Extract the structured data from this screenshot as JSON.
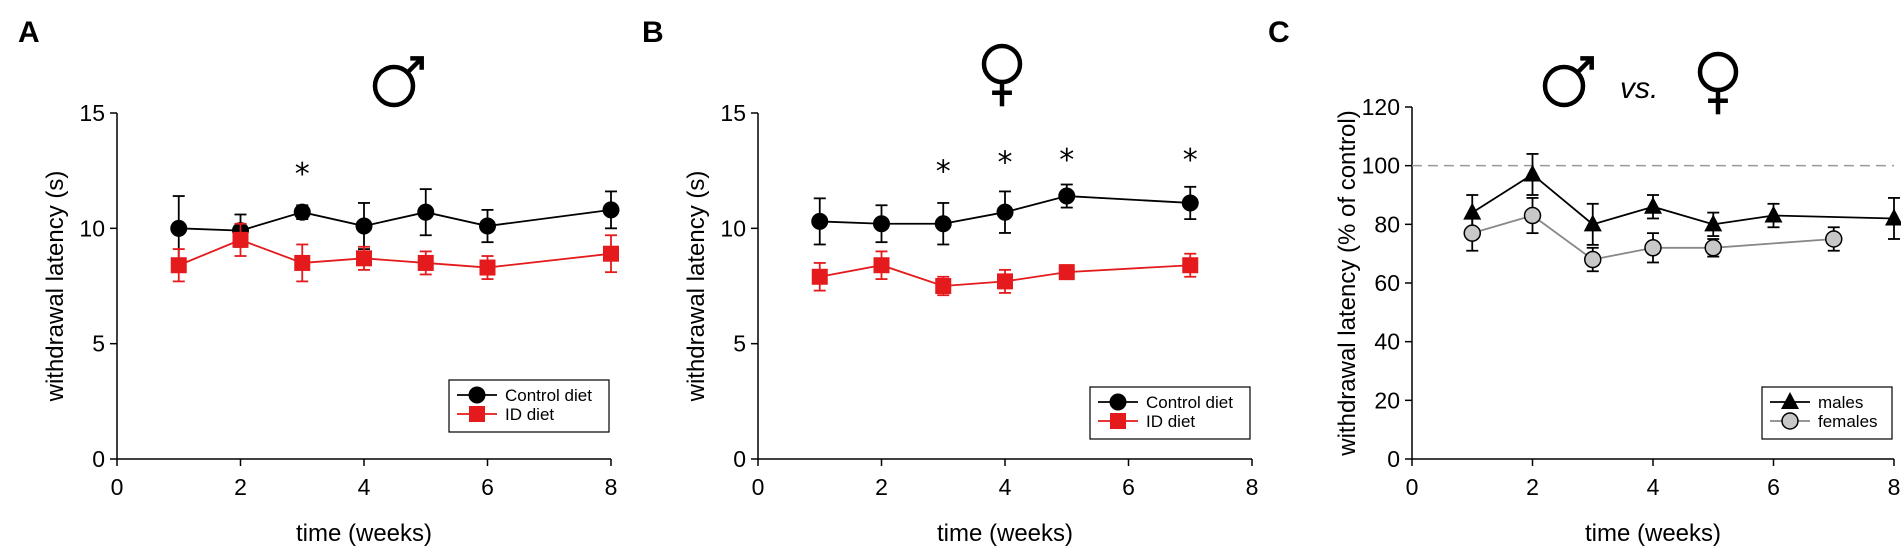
{
  "chart_data": [
    {
      "type": "line",
      "panel_label": "A",
      "sex_symbol": "male-symbol",
      "xlabel": "time (weeks)",
      "ylabel": "withdrawal latency (s)",
      "xlim": [
        0,
        8
      ],
      "ylim": [
        0,
        15
      ],
      "xticks": [
        "0",
        "2",
        "4",
        "6",
        "8"
      ],
      "yticks": [
        "0",
        "5",
        "10",
        "15"
      ],
      "xtick_values": [
        0,
        2,
        4,
        6,
        8
      ],
      "ytick_values": [
        0,
        5,
        10,
        15
      ],
      "legend_position": "bottom-right",
      "annotations": [
        {
          "text": "*",
          "x": 3,
          "y": 12.7
        }
      ],
      "series": [
        {
          "name": "Control diet",
          "color": "#000000",
          "marker": "circle",
          "x": [
            1,
            2,
            3,
            4,
            5,
            6,
            8
          ],
          "values": [
            10.0,
            9.9,
            10.7,
            10.1,
            10.7,
            10.1,
            10.8
          ],
          "errors": [
            1.4,
            0.7,
            0.3,
            1.0,
            1.0,
            0.7,
            0.8
          ]
        },
        {
          "name": "ID diet",
          "color": "#e41a1c",
          "marker": "square",
          "x": [
            1,
            2,
            3,
            4,
            5,
            6,
            8
          ],
          "values": [
            8.4,
            9.5,
            8.5,
            8.7,
            8.5,
            8.3,
            8.9
          ],
          "errors": [
            0.7,
            0.7,
            0.8,
            0.5,
            0.5,
            0.5,
            0.8
          ]
        }
      ]
    },
    {
      "type": "line",
      "panel_label": "B",
      "sex_symbol": "female-symbol",
      "xlabel": "time (weeks)",
      "ylabel": "withdrawal latency (s)",
      "xlim": [
        0,
        8
      ],
      "ylim": [
        0,
        15
      ],
      "xticks": [
        "0",
        "2",
        "4",
        "6",
        "8"
      ],
      "yticks": [
        "0",
        "5",
        "10",
        "15"
      ],
      "xtick_values": [
        0,
        2,
        4,
        6,
        8
      ],
      "ytick_values": [
        0,
        5,
        10,
        15
      ],
      "legend_position": "bottom-right",
      "annotations": [
        {
          "text": "*",
          "x": 3,
          "y": 12.8
        },
        {
          "text": "*",
          "x": 4,
          "y": 13.2
        },
        {
          "text": "*",
          "x": 5,
          "y": 13.3
        },
        {
          "text": "*",
          "x": 7,
          "y": 13.3
        }
      ],
      "series": [
        {
          "name": "Control diet",
          "color": "#000000",
          "marker": "circle",
          "x": [
            1,
            2,
            3,
            4,
            5,
            7
          ],
          "values": [
            10.3,
            10.2,
            10.2,
            10.7,
            11.4,
            11.1
          ],
          "errors": [
            1.0,
            0.8,
            0.9,
            0.9,
            0.5,
            0.7
          ]
        },
        {
          "name": "ID diet",
          "color": "#e41a1c",
          "marker": "square",
          "x": [
            1,
            2,
            3,
            4,
            5,
            7
          ],
          "values": [
            7.9,
            8.4,
            7.5,
            7.7,
            8.1,
            8.4
          ],
          "errors": [
            0.6,
            0.6,
            0.4,
            0.5,
            0.3,
            0.5
          ]
        }
      ]
    },
    {
      "type": "line",
      "panel_label": "C",
      "sex_symbol": "male-vs-female",
      "vs_text": "vs.",
      "xlabel": "time (weeks)",
      "ylabel": "withdrawal latency (% of control)",
      "xlim": [
        0,
        8
      ],
      "ylim": [
        0,
        120
      ],
      "xticks": [
        "0",
        "2",
        "4",
        "6",
        "8"
      ],
      "yticks": [
        "0",
        "20",
        "40",
        "60",
        "80",
        "100",
        "120"
      ],
      "xtick_values": [
        0,
        2,
        4,
        6,
        8
      ],
      "ytick_values": [
        0,
        20,
        40,
        60,
        80,
        100,
        120
      ],
      "reference_line": 100,
      "legend_position": "bottom-right",
      "annotations": [],
      "series": [
        {
          "name": "males",
          "color": "#000000",
          "marker": "triangle",
          "x": [
            1,
            2,
            3,
            4,
            5,
            6,
            8
          ],
          "values": [
            84,
            97,
            80,
            86,
            80,
            83,
            82
          ],
          "errors": [
            6,
            7,
            7,
            4,
            4,
            4,
            7
          ]
        },
        {
          "name": "females",
          "color": "#888888",
          "fill": "#c8c8c8",
          "marker": "circle",
          "x": [
            1,
            2,
            3,
            4,
            5,
            7
          ],
          "values": [
            77,
            83,
            68,
            72,
            72,
            75
          ],
          "errors": [
            6,
            6,
            4,
            5,
            3,
            4
          ]
        }
      ]
    }
  ]
}
